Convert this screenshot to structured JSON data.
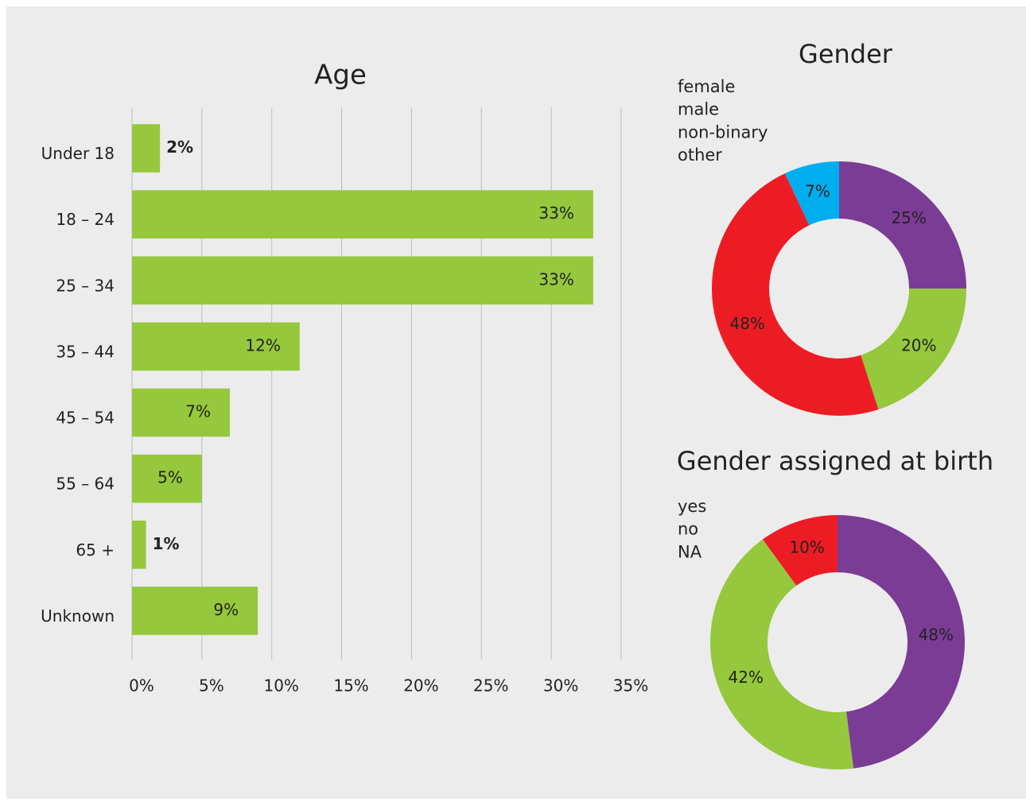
{
  "chart_data": [
    {
      "type": "bar",
      "orientation": "horizontal",
      "title": "Age",
      "categories": [
        "Under 18",
        "18 – 24",
        "25 – 34",
        "35 – 44",
        "45 – 54",
        "55 – 64",
        "65 +",
        "Unknown"
      ],
      "values": [
        2,
        33,
        33,
        12,
        7,
        5,
        1,
        9
      ],
      "value_labels": [
        "2%",
        "33%",
        "33%",
        "12%",
        "7%",
        "5%",
        "1%",
        "9%"
      ],
      "color": "#95c83c",
      "xlim": [
        0,
        35
      ],
      "xticks": [
        {
          "value": 0,
          "label": "0%"
        },
        {
          "value": 5,
          "label": "5%"
        },
        {
          "value": 10,
          "label": "10%"
        },
        {
          "value": 15,
          "label": "15%"
        },
        {
          "value": 20,
          "label": "20%"
        },
        {
          "value": 25,
          "label": "25%"
        },
        {
          "value": 30,
          "label": "30%"
        },
        {
          "value": 35,
          "label": "35%"
        }
      ],
      "grid": true
    },
    {
      "type": "donut",
      "title": "Gender",
      "categories": [
        "female",
        "male",
        "non-binary",
        "other"
      ],
      "values": [
        25,
        20,
        48,
        7
      ],
      "value_labels": [
        "25%",
        "20%",
        "48%",
        "7%"
      ],
      "colors": [
        "#7b3c96",
        "#95c83c",
        "#ed1c24",
        "#00aeef"
      ],
      "legend": "top-left"
    },
    {
      "type": "donut",
      "title": "Gender assigned at birth",
      "categories": [
        "yes",
        "no",
        "NA"
      ],
      "values": [
        48,
        42,
        10
      ],
      "value_labels": [
        "48%",
        "42%",
        "10%"
      ],
      "colors": [
        "#7b3c96",
        "#95c83c",
        "#ed1c24"
      ],
      "legend": "top-left"
    }
  ]
}
